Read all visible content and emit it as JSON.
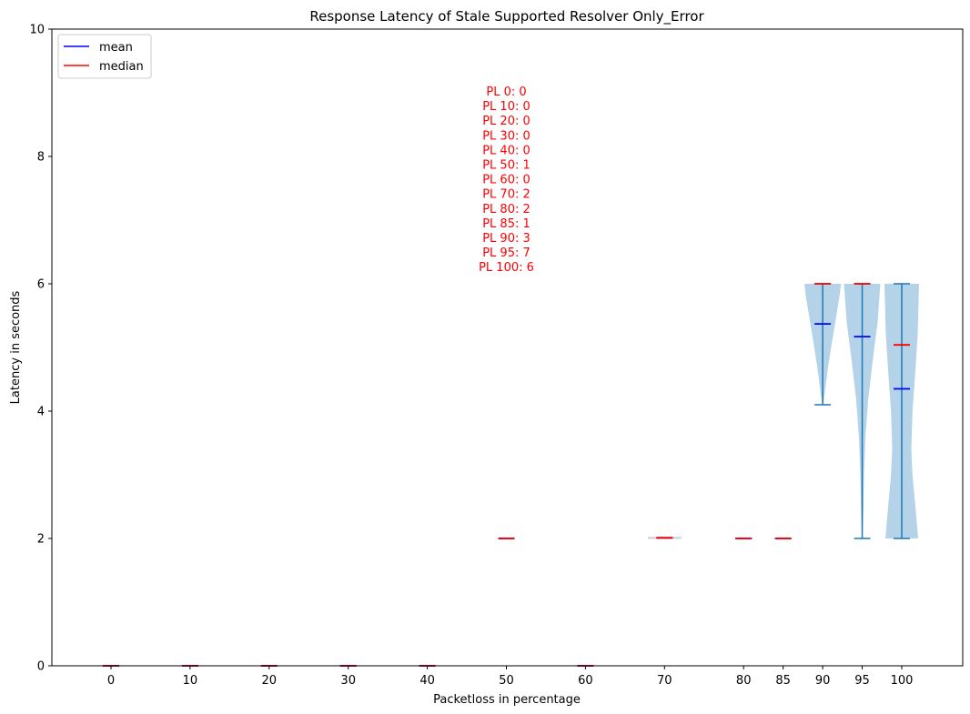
{
  "chart_data": {
    "type": "violin",
    "title": "Response Latency of Stale Supported Resolver Only_Error",
    "xlabel": "Packetloss in percentage",
    "ylabel": "Latency in seconds",
    "ylim": [
      0,
      10
    ],
    "yticks": [
      "0",
      "2",
      "4",
      "6",
      "8",
      "10"
    ],
    "categories": [
      "0",
      "10",
      "20",
      "30",
      "40",
      "50",
      "60",
      "70",
      "80",
      "85",
      "90",
      "95",
      "100"
    ],
    "series": [
      {
        "x": 0,
        "count": 0,
        "min": 0,
        "max": 0,
        "mean": 0,
        "median": 0
      },
      {
        "x": 10,
        "count": 0,
        "min": 0,
        "max": 0,
        "mean": 0,
        "median": 0
      },
      {
        "x": 20,
        "count": 0,
        "min": 0,
        "max": 0,
        "mean": 0,
        "median": 0
      },
      {
        "x": 30,
        "count": 0,
        "min": 0,
        "max": 0,
        "mean": 0,
        "median": 0
      },
      {
        "x": 40,
        "count": 0,
        "min": 0,
        "max": 0,
        "mean": 0,
        "median": 0
      },
      {
        "x": 50,
        "count": 1,
        "min": 2.0,
        "max": 2.0,
        "mean": 2.0,
        "median": 2.0
      },
      {
        "x": 60,
        "count": 0,
        "min": 0,
        "max": 0,
        "mean": 0,
        "median": 0
      },
      {
        "x": 70,
        "count": 2,
        "min": 2.0,
        "max": 2.02,
        "mean": 2.01,
        "median": 2.01
      },
      {
        "x": 80,
        "count": 2,
        "min": 2.0,
        "max": 2.0,
        "mean": 2.0,
        "median": 2.0
      },
      {
        "x": 85,
        "count": 1,
        "min": 2.0,
        "max": 2.0,
        "mean": 2.0,
        "median": 2.0
      },
      {
        "x": 90,
        "count": 3,
        "min": 4.1,
        "max": 6.0,
        "mean": 5.37,
        "median": 6.0
      },
      {
        "x": 95,
        "count": 7,
        "min": 2.0,
        "max": 6.0,
        "mean": 5.17,
        "median": 6.0
      },
      {
        "x": 100,
        "count": 6,
        "min": 2.0,
        "max": 6.0,
        "mean": 4.35,
        "median": 5.04
      }
    ],
    "legend": {
      "placement": "upper-left",
      "items": [
        {
          "label": "mean",
          "color": "#0000ff"
        },
        {
          "label": "median",
          "color": "#ff0000"
        }
      ]
    },
    "annotation_lines": [
      "PL 0: 0",
      "PL 10: 0",
      "PL 20: 0",
      "PL 30: 0",
      "PL 40: 0",
      "PL 50: 1",
      "PL 60: 0",
      "PL 70: 2",
      "PL 80: 2",
      "PL 85: 1",
      "PL 90: 3",
      "PL 95: 7",
      "PL 100: 6"
    ],
    "grid": false,
    "colors": {
      "violin_fill": "#b5d3e8",
      "whisker": "#1f77b4",
      "mean": "#0000ff",
      "median": "#ff0000",
      "annotation": "#ff0000"
    }
  }
}
